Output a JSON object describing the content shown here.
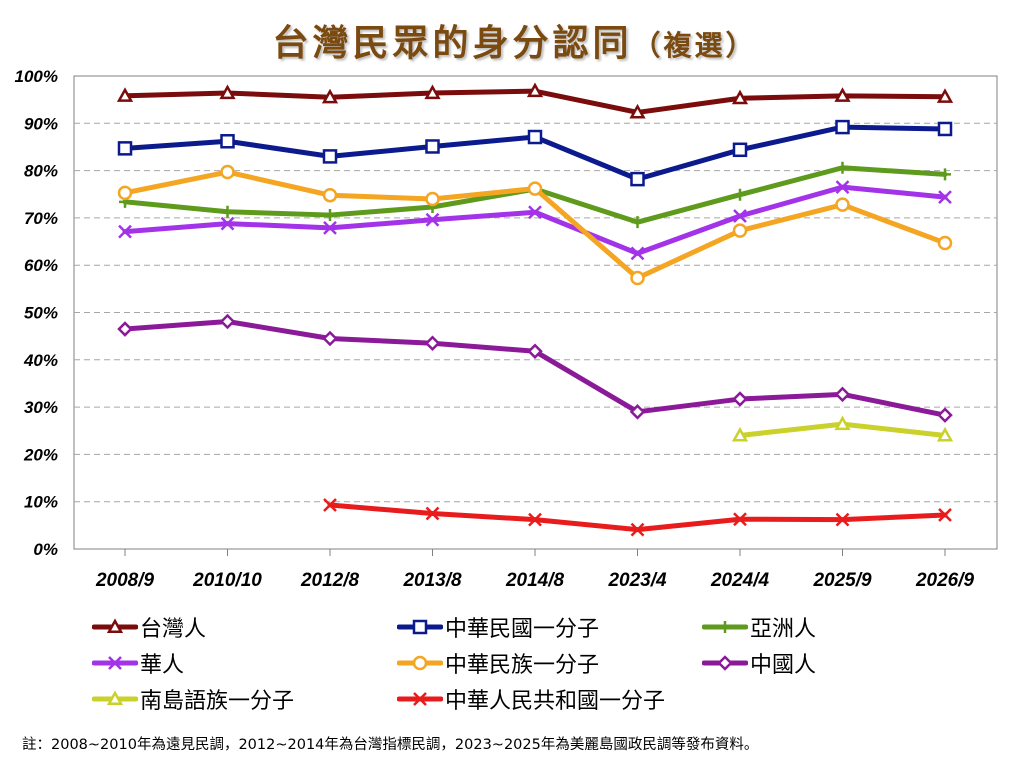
{
  "title_main": "台灣民眾的身分認同",
  "title_sub": "（複選）",
  "note": "註：2008~2010年為遠見民調，2012~2014年為台灣指標民調，2023~2025年為美麗島國政民調等發布資料。",
  "chart_data": {
    "type": "line",
    "categories": [
      "2008/9",
      "2010/10",
      "2012/8",
      "2013/8",
      "2014/8",
      "2023/4",
      "2024/4",
      "2025/9",
      "2026/9"
    ],
    "ylim": [
      0,
      100
    ],
    "yticks": [
      "0%",
      "10%",
      "20%",
      "30%",
      "40%",
      "50%",
      "60%",
      "70%",
      "80%",
      "90%",
      "100%"
    ],
    "grid": "horizontal-dashed",
    "legend_position": "bottom",
    "series": [
      {
        "name": "台灣人",
        "color": "#7b0c0c",
        "marker": "triangle",
        "values": [
          95.8,
          96.4,
          95.5,
          96.4,
          96.8,
          92.3,
          95.3,
          95.8,
          95.6
        ]
      },
      {
        "name": "中華民國一分子",
        "color": "#0b1a8c",
        "marker": "square",
        "values": [
          84.7,
          86.2,
          83.0,
          85.1,
          87.1,
          78.2,
          84.4,
          89.2,
          88.8
        ]
      },
      {
        "name": "亞洲人",
        "color": "#5e9a1c",
        "marker": "plus",
        "values": [
          73.4,
          71.3,
          70.6,
          72.3,
          76.1,
          69.1,
          74.9,
          80.6,
          79.2
        ]
      },
      {
        "name": "華人",
        "color": "#a233e8",
        "marker": "x",
        "values": [
          67.1,
          68.8,
          67.9,
          69.6,
          71.2,
          62.5,
          70.4,
          76.5,
          74.4
        ]
      },
      {
        "name": "中華民族一分子",
        "color": "#f4a521",
        "marker": "circle",
        "values": [
          75.3,
          79.7,
          74.8,
          74.0,
          76.2,
          57.3,
          67.3,
          72.8,
          64.7
        ]
      },
      {
        "name": "中國人",
        "color": "#8b1a99",
        "marker": "diamond",
        "values": [
          46.5,
          48.1,
          44.5,
          43.5,
          41.8,
          29.0,
          31.7,
          32.7,
          28.3
        ]
      },
      {
        "name": "南島語族一分子",
        "color": "#c9d12a",
        "marker": "triangle",
        "values": [
          null,
          null,
          null,
          null,
          null,
          null,
          24.0,
          26.4,
          24.0
        ]
      },
      {
        "name": "中華人民共和國一分子",
        "color": "#e81c1c",
        "marker": "x",
        "values": [
          null,
          null,
          9.3,
          7.5,
          6.2,
          4.1,
          6.3,
          6.2,
          7.2
        ]
      }
    ]
  }
}
